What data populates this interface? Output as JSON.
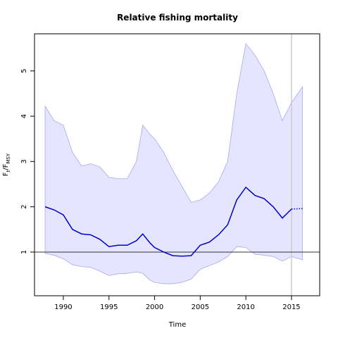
{
  "chart_data": {
    "type": "line",
    "title": "Relative fishing mortality",
    "xlabel": "Time",
    "ylabel_parts": [
      "F",
      "t",
      "/F",
      "MSY"
    ],
    "x": [
      1988,
      1989,
      1990,
      1991,
      1992,
      1993,
      1994,
      1995,
      1996,
      1997,
      1998,
      1998.7,
      1999.5,
      2000,
      2001,
      2002,
      2003,
      2004,
      2005,
      2006,
      2007,
      2008,
      2009,
      2010,
      2011,
      2012,
      2013,
      2014,
      2015,
      2016.2
    ],
    "band": {
      "color": "#e5e5ff",
      "edge": "#a8a8f0",
      "upper": [
        4.22,
        3.9,
        3.8,
        3.2,
        2.9,
        2.95,
        2.88,
        2.65,
        2.62,
        2.62,
        3.0,
        3.8,
        3.6,
        3.5,
        3.2,
        2.8,
        2.45,
        2.1,
        2.15,
        2.3,
        2.55,
        3.0,
        4.5,
        5.6,
        5.35,
        5.0,
        4.5,
        3.9,
        4.3,
        4.65
      ],
      "lower": [
        0.97,
        0.93,
        0.85,
        0.72,
        0.68,
        0.66,
        0.58,
        0.48,
        0.52,
        0.53,
        0.56,
        0.53,
        0.38,
        0.33,
        0.3,
        0.3,
        0.33,
        0.4,
        0.62,
        0.7,
        0.78,
        0.9,
        1.12,
        1.1,
        0.95,
        0.93,
        0.9,
        0.8,
        0.9,
        0.83
      ]
    },
    "series": [
      {
        "color": "#0000cc",
        "dashed": false,
        "values": [
          2.0,
          1.93,
          1.82,
          1.5,
          1.4,
          1.38,
          1.28,
          1.12,
          1.15,
          1.15,
          1.25,
          1.4,
          1.2,
          1.1,
          1.0,
          0.92,
          0.91,
          0.92,
          1.15,
          1.22,
          1.38,
          1.6,
          2.15,
          2.43,
          2.25,
          2.18,
          2.0,
          1.75,
          1.95,
          null
        ]
      },
      {
        "color": "#0000cc",
        "dashed": true,
        "values": [
          null,
          null,
          null,
          null,
          null,
          null,
          null,
          null,
          null,
          null,
          null,
          null,
          null,
          null,
          null,
          null,
          null,
          null,
          null,
          null,
          null,
          null,
          null,
          null,
          null,
          null,
          null,
          null,
          1.95,
          1.96
        ]
      }
    ],
    "hline": 1,
    "vline": 2015,
    "xlim": [
      1986.84,
      2018.09
    ],
    "ylim": [
      0.035,
      5.82
    ],
    "xticks": [
      1990,
      1995,
      2000,
      2005,
      2010,
      2015
    ],
    "yticks": [
      1,
      2,
      3,
      4,
      5
    ]
  }
}
